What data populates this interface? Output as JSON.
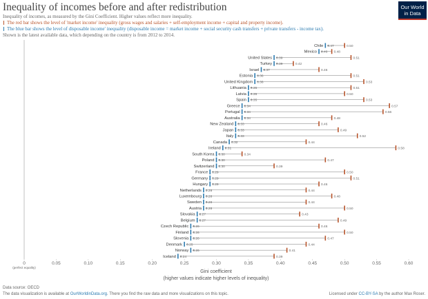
{
  "chart_data": {
    "type": "dumbbell",
    "title": "Inequality of incomes before and after redistribution",
    "subtitle": "Inequality of incomes, as measured by the Gini Coefficient. Higher values reflect more inequality.",
    "red_note": "The red bar shows the level of 'market income' inequality (gross wages and salaries + self-employment income + capital and property income).",
    "blue_note": "The blue bar shows the level of disposable income' inequality (disposable income = market income + social security cash transfers + private transfers - income tax).",
    "coverage_note": "Shown is the latest available data, which depending on the country is from 2012 to 2014.",
    "categories": [
      "Chile",
      "Mexico",
      "United States",
      "Turkey",
      "Israel",
      "Estonia",
      "United Kingdom",
      "Lithuania",
      "Latvia",
      "Spain",
      "Greece",
      "Portugal",
      "Australia",
      "New Zealand",
      "Japan",
      "Italy",
      "Canada",
      "Ireland",
      "South Korea",
      "Poland",
      "Switzerland",
      "France",
      "Germany",
      "Hungary",
      "Netherlands",
      "Luxembourg",
      "Sweden",
      "Austria",
      "Slovakia",
      "Belgium",
      "Czech Republic",
      "Finland",
      "Slovenia",
      "Denmark",
      "Norway",
      "Iceland"
    ],
    "series": [
      {
        "color": "#b8542b",
        "values": [
          0.5,
          0.48,
          0.51,
          0.42,
          0.46,
          0.51,
          0.53,
          0.51,
          0.5,
          0.53,
          0.57,
          0.56,
          0.48,
          0.46,
          0.49,
          0.52,
          0.44,
          0.58,
          0.34,
          0.47,
          0.39,
          0.5,
          0.51,
          0.46,
          0.44,
          0.48,
          0.44,
          0.5,
          0.43,
          0.49,
          0.46,
          0.5,
          0.47,
          0.44,
          0.41,
          0.39
        ],
        "value_labels": [
          "0.50",
          "0.48",
          "0.51",
          "0.42",
          "0.46",
          "0.51",
          "0.53",
          "0.51",
          "0.50",
          "0.53",
          "0.57",
          "0.56",
          "0.48",
          "0.46",
          "0.49",
          "0.52",
          "0.44",
          "0.58",
          "0.34",
          "0.47",
          "0.39",
          "0.50",
          "0.51",
          "0.46",
          "0.44",
          "0.48",
          "0.44",
          "0.50",
          "0.43",
          "0.49",
          "0.46",
          "0.50",
          "0.47",
          "0.44",
          "0.41",
          "0.39"
        ]
      },
      {
        "color": "#2a7ab0",
        "values": [
          0.47,
          0.46,
          0.39,
          0.39,
          0.37,
          0.36,
          0.36,
          0.35,
          0.35,
          0.35,
          0.34,
          0.34,
          0.34,
          0.33,
          0.33,
          0.33,
          0.32,
          0.31,
          0.3,
          0.3,
          0.3,
          0.29,
          0.29,
          0.29,
          0.28,
          0.28,
          0.28,
          0.28,
          0.27,
          0.27,
          0.26,
          0.26,
          0.26,
          0.25,
          0.26,
          0.24
        ],
        "value_labels": [
          "0.47",
          "0.46",
          "0.39",
          "0.39",
          "0.37",
          "0.36",
          "0.36",
          "0.35",
          "0.35",
          "0.35",
          "0.34",
          "0.34",
          "0.34",
          "0.33",
          "0.33",
          "0.33",
          "0.32",
          "0.31",
          "0.30",
          "0.30",
          "0.30",
          "0.29",
          "0.29",
          "0.29",
          "0.28",
          "0.28",
          "0.28",
          "0.28",
          "0.27",
          "0.27",
          "0.26",
          "0.26",
          "0.26",
          "0.25",
          "0.26",
          "0.24"
        ]
      }
    ],
    "xlim": [
      0,
      0.6
    ],
    "xticks": [
      0,
      0.05,
      {
        "value": 0.1,
        "label": "0.10"
      },
      0.15,
      {
        "value": 0.2,
        "label": "0.20"
      },
      0.25,
      {
        "value": 0.3,
        "label": "0.30"
      },
      0.35,
      {
        "value": 0.4,
        "label": "0.40"
      },
      0.45,
      {
        "value": 0.5,
        "label": "0.50"
      },
      0.55,
      {
        "value": 0.6,
        "label": "0.60"
      }
    ],
    "zero_note": "(perfect equality)",
    "xlabel": "Gini coefficient",
    "xlabel_sub": "(higher values indicate higher levels of inequality)"
  },
  "logo": {
    "line1": "Our World",
    "line2": "in Data"
  },
  "footer": {
    "source": "Data source: OECD",
    "note_pre": "The data visualization is available at ",
    "note_link": "OurWorldinData.org",
    "note_post": ". There you find the raw data and more visualizations on this topic.",
    "license_pre": "Licensed under ",
    "license_link": "CC-BY-SA",
    "license_post": " by the author Max Roser."
  }
}
